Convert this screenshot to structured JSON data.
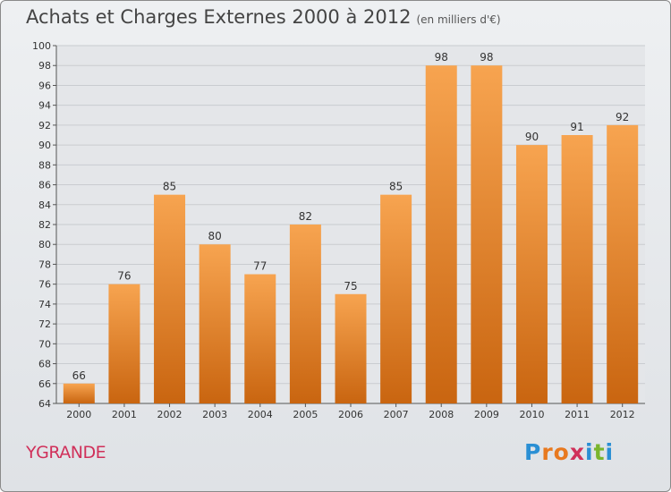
{
  "header": {
    "title": "Achats et Charges Externes 2000 à 2012",
    "unit": "(en milliers d'€)"
  },
  "footer": {
    "place": "YGRANDE",
    "logo_letters": [
      "P",
      "r",
      "o",
      "x",
      "i",
      "t",
      "i"
    ],
    "logo_colors": [
      "#2a8fd4",
      "#e8791f",
      "#e8791f",
      "#d0305a",
      "#2a8fd4",
      "#7ab52d",
      "#2a8fd4"
    ]
  },
  "colors": {
    "bar_light": "#f7a450",
    "bar_dark": "#c96510",
    "grid": "#c9ccd0"
  },
  "chart_data": {
    "type": "bar",
    "title": "Achats et Charges Externes 2000 à 2012",
    "subtitle": "(en milliers d'€)",
    "xlabel": "",
    "ylabel": "",
    "categories": [
      "2000",
      "2001",
      "2002",
      "2003",
      "2004",
      "2005",
      "2006",
      "2007",
      "2008",
      "2009",
      "2010",
      "2011",
      "2012"
    ],
    "values": [
      66,
      76,
      85,
      80,
      77,
      82,
      75,
      85,
      98,
      98,
      90,
      91,
      92
    ],
    "ylim": [
      64,
      100
    ],
    "yticks": [
      64,
      66,
      68,
      70,
      72,
      74,
      76,
      78,
      80,
      82,
      84,
      86,
      88,
      90,
      92,
      94,
      96,
      98,
      100
    ],
    "grid": true,
    "legend": "none"
  }
}
